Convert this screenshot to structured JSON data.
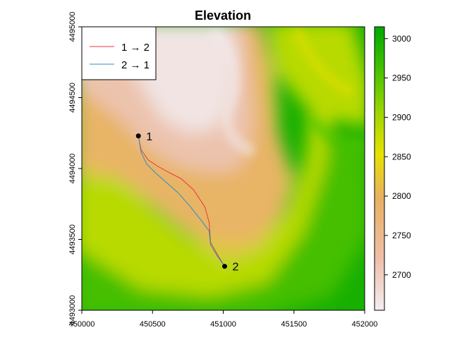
{
  "chart_data": {
    "type": "heatmap",
    "title": "Elevation",
    "xlabel": "",
    "ylabel": "",
    "xlim": [
      450000,
      452000
    ],
    "ylim": [
      4493000,
      4495000
    ],
    "x_ticks": [
      450000,
      450500,
      451000,
      451500,
      452000
    ],
    "y_ticks": [
      4493000,
      4493500,
      4494000,
      4494500,
      4495000
    ],
    "colorbar": {
      "range": [
        2655,
        3015
      ],
      "ticks": [
        2700,
        2750,
        2800,
        2850,
        2900,
        2950,
        3000
      ],
      "palette": "terrain (light pink high-low to green)",
      "colors": [
        "#f2f2f2",
        "#eab8a0",
        "#e8b060",
        "#e6e600",
        "#4dc800",
        "#00a600"
      ]
    },
    "legend": {
      "position": "top-left",
      "entries": [
        {
          "label": "1 → 2",
          "color": "#e8363c"
        },
        {
          "label": "2 → 1",
          "color": "#2a90c8"
        }
      ]
    },
    "points": [
      {
        "label": "1",
        "x": 450400,
        "y": 4494230
      },
      {
        "label": "2",
        "x": 451010,
        "y": 4493310
      }
    ],
    "series": [
      {
        "name": "1 → 2",
        "color": "#e8363c",
        "x": [
          450400,
          450420,
          450470,
          450530,
          450620,
          450700,
          450790,
          450870,
          450900,
          450910,
          450960,
          451010
        ],
        "y": [
          4494230,
          4494130,
          4494060,
          4494020,
          4493970,
          4493930,
          4493850,
          4493730,
          4493620,
          4493480,
          4493390,
          4493310
        ]
      },
      {
        "name": "2 → 1",
        "color": "#2a90c8",
        "x": [
          450400,
          450420,
          450460,
          450520,
          450600,
          450680,
          450760,
          450840,
          450900,
          450910,
          450960,
          451010
        ],
        "y": [
          4494230,
          4494110,
          4494030,
          4493970,
          4493900,
          4493830,
          4493740,
          4493640,
          4493560,
          4493460,
          4493380,
          4493310
        ]
      }
    ]
  }
}
